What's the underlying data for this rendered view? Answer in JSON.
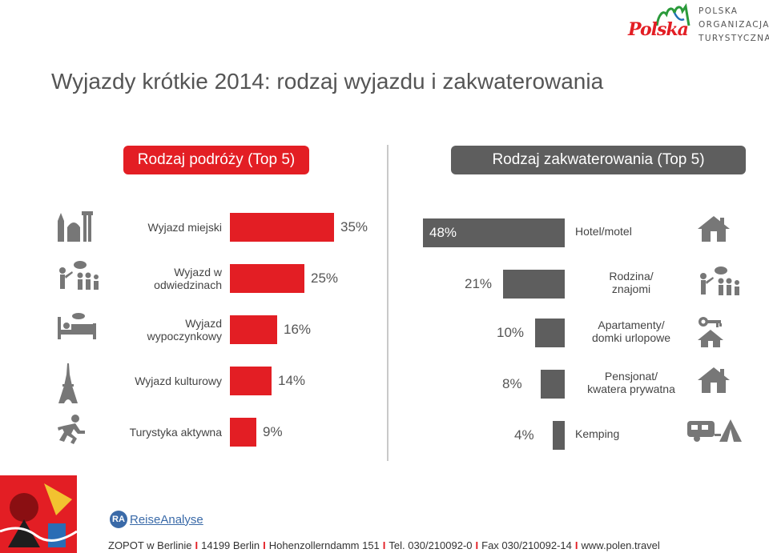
{
  "logo": {
    "wordmark": "Polska",
    "org_lines": [
      "POLSKA",
      "ORGANIZACJA",
      "TURYSTYCZNA"
    ]
  },
  "title": "Wyjazdy krótkie 2014: rodzaj wyjazdu i zakwaterowania",
  "colors": {
    "accent_red": "#e31e24",
    "dark_gray": "#5e5e5e",
    "divider": "#c9c9c9"
  },
  "chart_data": [
    {
      "type": "bar",
      "orientation": "horizontal",
      "title": "Rodzaj podróży (Top 5)",
      "categories": [
        "Wyjazd miejski",
        "Wyjazd w odwiedzinach",
        "Wyjazd wypoczynkowy",
        "Wyjazd kulturowy",
        "Turystyka aktywna"
      ],
      "category_lines": [
        [
          "Wyjazd miejski"
        ],
        [
          "Wyjazd w",
          "odwiedzinach"
        ],
        [
          "Wyjazd",
          "wypoczynkowy"
        ],
        [
          "Wyjazd kulturowy"
        ],
        [
          "Turystyka aktywna"
        ]
      ],
      "values": [
        35,
        25,
        16,
        14,
        9
      ],
      "value_labels": [
        "35%",
        "25%",
        "16%",
        "14%",
        "9%"
      ],
      "icons": [
        "city-icon",
        "visiting-people-icon",
        "bed-rest-icon",
        "eiffel-tower-icon",
        "runner-icon"
      ],
      "bar_color": "#e31e24",
      "xlim": [
        0,
        35
      ]
    },
    {
      "type": "bar",
      "orientation": "horizontal",
      "direction": "right-to-left",
      "title": "Rodzaj zakwaterowania (Top 5)",
      "categories": [
        "Hotel/motel",
        "Rodzina/ znajomi",
        "Apartamenty/ domki urlopowe",
        "Pensjonat/ kwatera prywatna",
        "Kemping"
      ],
      "category_lines": [
        [
          "Hotel/motel"
        ],
        [
          "Rodzina/",
          "znajomi"
        ],
        [
          "Apartamenty/",
          "domki urlopowe"
        ],
        [
          "Pensjonat/",
          "kwatera prywatna"
        ],
        [
          "Kemping"
        ]
      ],
      "values": [
        48,
        21,
        10,
        8,
        4
      ],
      "value_labels": [
        "48%",
        "21%",
        "10%",
        "8%",
        "4%"
      ],
      "icons": [
        "house-icon",
        "visiting-people-icon",
        "key-house-icon",
        "house-icon",
        "caravan-tent-icon"
      ],
      "bar_color": "#5e5e5e",
      "xlim": [
        0,
        48
      ]
    }
  ],
  "footer": {
    "ra_badge": "RA",
    "ra_name": "ReiseAnalyse",
    "address_parts": [
      "ZOPOT w Berlinie",
      "14199 Berlin",
      "Hohenzollerndamm 151",
      "Tel. 030/210092-0",
      "Fax 030/210092-14",
      "www.polen.travel"
    ],
    "separator": "I"
  }
}
